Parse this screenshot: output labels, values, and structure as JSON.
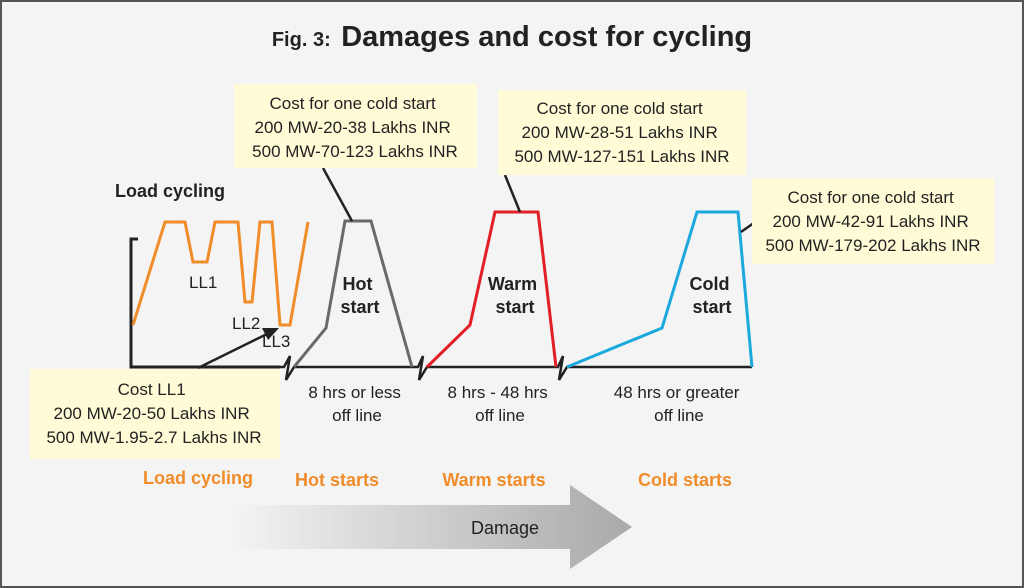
{
  "title": {
    "prefix": "Fig. 3:",
    "main": "Damages and cost for cycling"
  },
  "colors": {
    "background": "#f4f4f4",
    "border": "#555555",
    "note_box": "#fffbd6",
    "orange": "#f08c2a",
    "gray": "#6a6a6a",
    "red": "#e21f26",
    "cyan": "#1aa8dd",
    "arrow": "#bdbdbd",
    "black": "#222222"
  },
  "load_cycling": {
    "label": "Load cycling",
    "levels": [
      "LL1",
      "LL2",
      "LL3"
    ],
    "cost_box": {
      "lines": [
        "Cost LL1",
        "200 MW-20-50 Lakhs INR",
        "500 MW-1.95-2.7 Lakhs INR"
      ]
    }
  },
  "starts": [
    {
      "id": "hot",
      "label_lines": [
        "Hot",
        "start"
      ],
      "offline_lines": [
        "8 hrs or less",
        "off line"
      ],
      "category": "Hot starts",
      "cost_lines": [
        "Cost for one cold start",
        "200 MW-20-38 Lakhs INR",
        "500 MW-70-123 Lakhs INR"
      ]
    },
    {
      "id": "warm",
      "label_lines": [
        "Warm",
        "start"
      ],
      "offline_lines": [
        "8 hrs - 48 hrs",
        "off line"
      ],
      "category": "Warm starts",
      "cost_lines": [
        "Cost for one cold start",
        "200 MW-28-51 Lakhs INR",
        "500 MW-127-151 Lakhs INR"
      ]
    },
    {
      "id": "cold",
      "label_lines": [
        "Cold",
        "start"
      ],
      "offline_lines": [
        "48 hrs or greater",
        "off line"
      ],
      "category": "Cold starts",
      "cost_lines": [
        "Cost for one cold start",
        "200 MW-42-91 Lakhs INR",
        "500 MW-179-202 Lakhs INR"
      ]
    }
  ],
  "bottom_category": "Load cycling",
  "damage_arrow": {
    "label": "Damage"
  }
}
